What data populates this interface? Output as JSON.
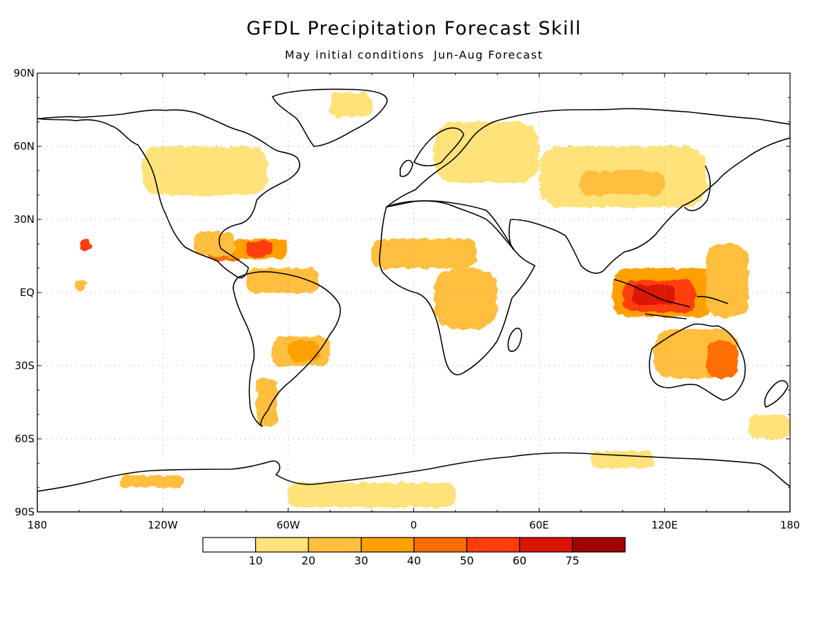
{
  "title": "GFDL Precipitation Forecast Skill",
  "subtitle": "May initial conditions  Jun-Aug Forecast",
  "lat_labels": [
    "90N",
    "60N",
    "30N",
    "EQ",
    "30S",
    "60S",
    "90S"
  ],
  "lon_labels": [
    "180",
    "120W",
    "60W",
    "0",
    "60E",
    "120E",
    "180"
  ],
  "colorbar": {
    "labels": [
      "10",
      "20",
      "30",
      "40",
      "50",
      "60",
      "75"
    ],
    "colors": [
      "#ffffff",
      "#ffe37a",
      "#ffbe3c",
      "#ffa000",
      "#ff6e00",
      "#ff3c0a",
      "#dc1405",
      "#a00000"
    ]
  },
  "chart_data": {
    "type": "heatmap",
    "projection": "cylindrical-equidistant",
    "lon_range": [
      -180,
      180
    ],
    "lat_range": [
      -90,
      90
    ],
    "grid": true,
    "regions": [
      {
        "lon": [
          -160,
          -154
        ],
        "lat": [
          17,
          22
        ],
        "level": 50
      },
      {
        "lon": [
          -162,
          -157
        ],
        "lat": [
          1,
          5
        ],
        "level": 20
      },
      {
        "lon": [
          -98,
          -82
        ],
        "lat": [
          13,
          20
        ],
        "level": 40
      },
      {
        "lon": [
          -90,
          -60
        ],
        "lat": [
          14,
          22
        ],
        "level": 30
      },
      {
        "lon": [
          -80,
          -68
        ],
        "lat": [
          15,
          21
        ],
        "level": 50
      },
      {
        "lon": [
          -105,
          -85
        ],
        "lat": [
          15,
          25
        ],
        "level": 20
      },
      {
        "lon": [
          -80,
          -45
        ],
        "lat": [
          0,
          10
        ],
        "level": 20
      },
      {
        "lon": [
          -68,
          -40
        ],
        "lat": [
          -30,
          -18
        ],
        "level": 20
      },
      {
        "lon": [
          -60,
          -45
        ],
        "lat": [
          -28,
          -20
        ],
        "level": 30
      },
      {
        "lon": [
          -75,
          -65
        ],
        "lat": [
          -55,
          -35
        ],
        "level": 20
      },
      {
        "lon": [
          -130,
          -70
        ],
        "lat": [
          40,
          60
        ],
        "level": 10
      },
      {
        "lon": [
          -40,
          -20
        ],
        "lat": [
          72,
          82
        ],
        "level": 10
      },
      {
        "lon": [
          10,
          60
        ],
        "lat": [
          45,
          70
        ],
        "level": 10
      },
      {
        "lon": [
          60,
          140
        ],
        "lat": [
          35,
          60
        ],
        "level": 10
      },
      {
        "lon": [
          80,
          120
        ],
        "lat": [
          40,
          50
        ],
        "level": 20
      },
      {
        "lon": [
          -20,
          30
        ],
        "lat": [
          10,
          22
        ],
        "level": 20
      },
      {
        "lon": [
          10,
          40
        ],
        "lat": [
          -15,
          10
        ],
        "level": 20
      },
      {
        "lon": [
          95,
          145
        ],
        "lat": [
          -10,
          10
        ],
        "level": 30
      },
      {
        "lon": [
          100,
          135
        ],
        "lat": [
          -8,
          5
        ],
        "level": 50
      },
      {
        "lon": [
          105,
          125
        ],
        "lat": [
          -5,
          3
        ],
        "level": 60
      },
      {
        "lon": [
          140,
          160
        ],
        "lat": [
          -10,
          20
        ],
        "level": 20
      },
      {
        "lon": [
          115,
          155
        ],
        "lat": [
          -35,
          -15
        ],
        "level": 20
      },
      {
        "lon": [
          140,
          155
        ],
        "lat": [
          -35,
          -20
        ],
        "level": 40
      },
      {
        "lon": [
          -60,
          20
        ],
        "lat": [
          -88,
          -78
        ],
        "level": 10
      },
      {
        "lon": [
          85,
          115
        ],
        "lat": [
          -72,
          -65
        ],
        "level": 10
      },
      {
        "lon": [
          -140,
          -110
        ],
        "lat": [
          -80,
          -75
        ],
        "level": 20
      },
      {
        "lon": [
          160,
          180
        ],
        "lat": [
          -60,
          -50
        ],
        "level": 10
      }
    ]
  }
}
